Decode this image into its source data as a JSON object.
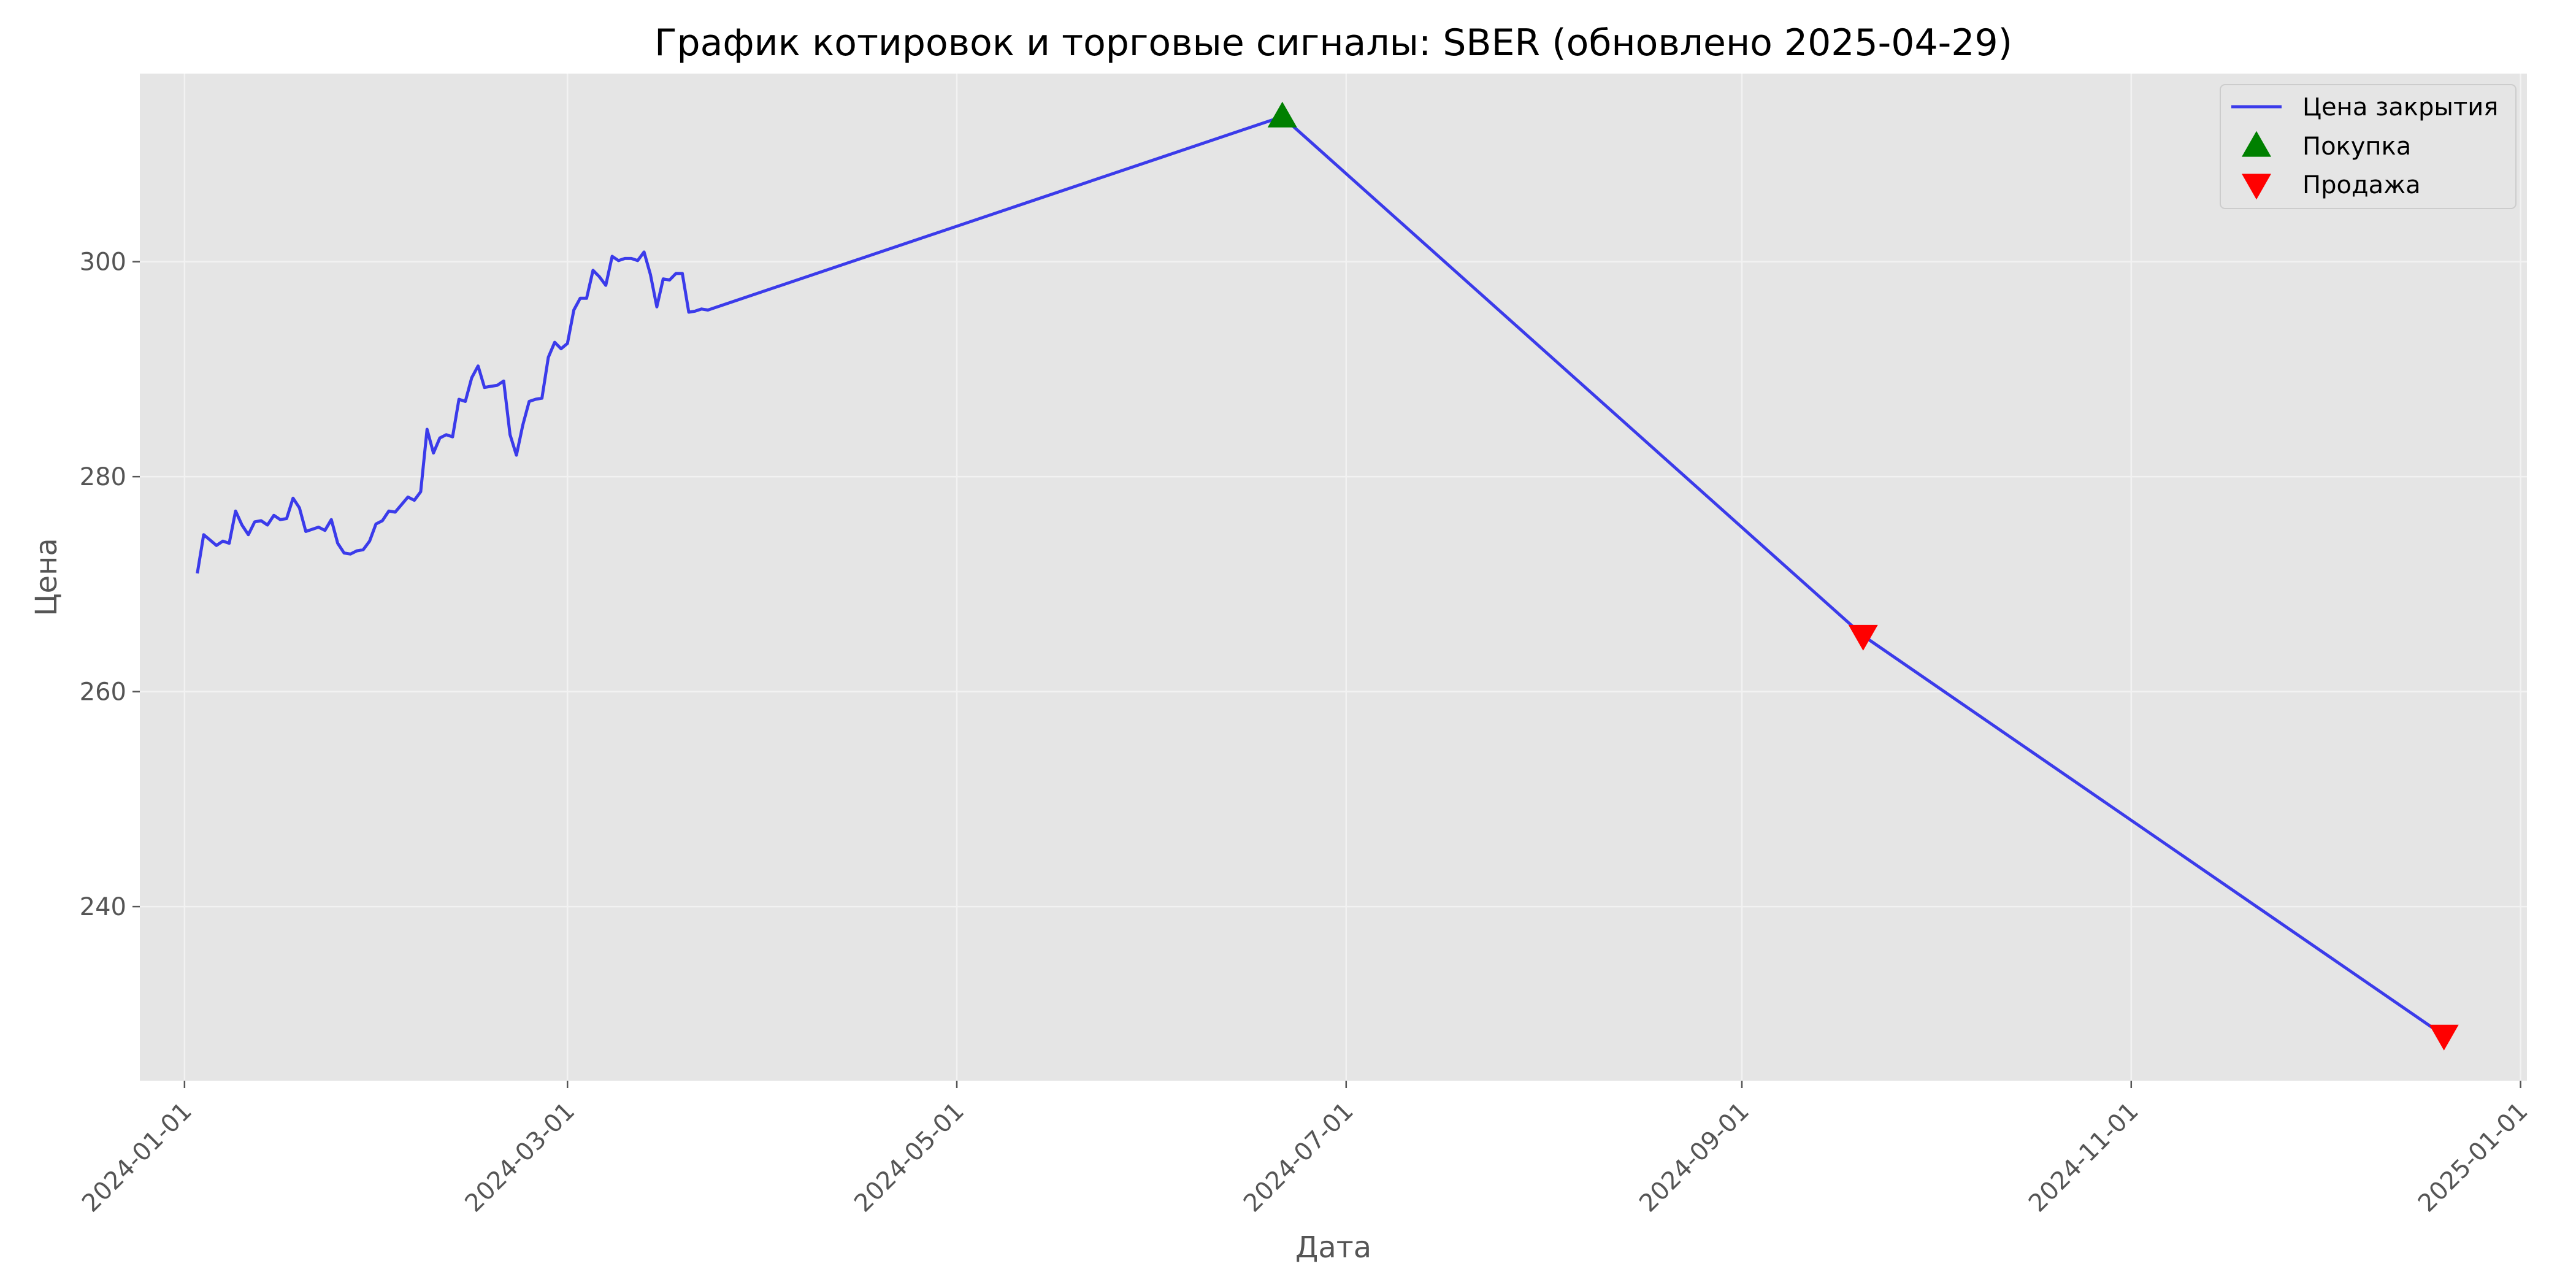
{
  "chart_data": {
    "type": "line",
    "title": "График котировок и торговые сигналы: SBER (обновлено 2025-04-29)",
    "xlabel": "Дата",
    "ylabel": "Цена",
    "x_ticks": [
      "2024-01-01",
      "2024-03-01",
      "2024-05-01",
      "2024-07-01",
      "2024-09-01",
      "2024-11-01",
      "2025-01-01"
    ],
    "y_ticks": [
      240,
      260,
      280,
      300
    ],
    "xlim": [
      "2023-12-25",
      "2025-01-02"
    ],
    "ylim": [
      223.8,
      317.5
    ],
    "grid": true,
    "legend_position": "top-right",
    "colors": {
      "plot_background": "#e5e5e5",
      "grid": "#f2f2f2",
      "line": "#3b3bea",
      "buy": "#008000",
      "sell": "#ff0000",
      "text": "#555555"
    },
    "series": [
      {
        "name": "Цена закрытия",
        "x": [
          "2024-01-03",
          "2024-01-04",
          "2024-01-05",
          "2024-01-06",
          "2024-01-07",
          "2024-01-08",
          "2024-01-09",
          "2024-01-10",
          "2024-01-11",
          "2024-01-12",
          "2024-01-13",
          "2024-01-14",
          "2024-01-15",
          "2024-01-16",
          "2024-01-17",
          "2024-01-18",
          "2024-01-19",
          "2024-01-20",
          "2024-01-21",
          "2024-01-22",
          "2024-01-23",
          "2024-01-24",
          "2024-01-25",
          "2024-01-26",
          "2024-01-27",
          "2024-01-28",
          "2024-01-29",
          "2024-01-30",
          "2024-01-31",
          "2024-02-01",
          "2024-02-02",
          "2024-02-03",
          "2024-02-04",
          "2024-02-05",
          "2024-02-06",
          "2024-02-07",
          "2024-02-08",
          "2024-02-09",
          "2024-02-10",
          "2024-02-11",
          "2024-02-12",
          "2024-02-13",
          "2024-02-14",
          "2024-02-15",
          "2024-02-16",
          "2024-02-17",
          "2024-02-18",
          "2024-02-19",
          "2024-02-20",
          "2024-02-21",
          "2024-02-22",
          "2024-02-23",
          "2024-02-24",
          "2024-02-25",
          "2024-02-26",
          "2024-02-27",
          "2024-02-28",
          "2024-02-29",
          "2024-03-01",
          "2024-03-02",
          "2024-03-03",
          "2024-03-04",
          "2024-03-05",
          "2024-03-06",
          "2024-03-07",
          "2024-03-08",
          "2024-03-09",
          "2024-03-10",
          "2024-03-11",
          "2024-03-12",
          "2024-03-13",
          "2024-03-14",
          "2024-03-15",
          "2024-03-16",
          "2024-03-17",
          "2024-03-18",
          "2024-03-19",
          "2024-03-20",
          "2024-03-21",
          "2024-03-22",
          "2024-03-23",
          "2024-06-21",
          "2024-09-20",
          "2024-12-20"
        ],
        "y": [
          271.0,
          274.6,
          274.1,
          273.6,
          274.0,
          273.8,
          276.8,
          275.5,
          274.6,
          275.8,
          275.9,
          275.5,
          276.4,
          276.0,
          276.1,
          278.0,
          277.1,
          274.9,
          275.1,
          275.3,
          275.0,
          276.0,
          273.8,
          272.9,
          272.8,
          273.1,
          273.2,
          274.0,
          275.6,
          275.9,
          276.8,
          276.7,
          277.4,
          278.1,
          277.8,
          278.6,
          284.4,
          282.2,
          283.6,
          283.9,
          283.7,
          287.2,
          287.0,
          289.2,
          290.3,
          288.3,
          288.4,
          288.5,
          288.9,
          283.9,
          282.0,
          284.8,
          287.0,
          287.2,
          287.3,
          291.1,
          292.5,
          291.9,
          292.4,
          295.5,
          296.6,
          296.6,
          299.2,
          298.6,
          297.8,
          300.5,
          300.1,
          300.3,
          300.3,
          300.1,
          300.9,
          298.8,
          295.8,
          298.4,
          298.3,
          298.9,
          298.9,
          295.3,
          295.4,
          295.6,
          295.5,
          313.5,
          265.2,
          228.0
        ]
      },
      {
        "name": "Покупка",
        "marker": "triangle-up",
        "x": [
          "2024-06-21"
        ],
        "y": [
          313.5
        ]
      },
      {
        "name": "Продажа",
        "marker": "triangle-down",
        "x": [
          "2024-09-20",
          "2024-12-20"
        ],
        "y": [
          265.2,
          228.0
        ]
      }
    ]
  }
}
